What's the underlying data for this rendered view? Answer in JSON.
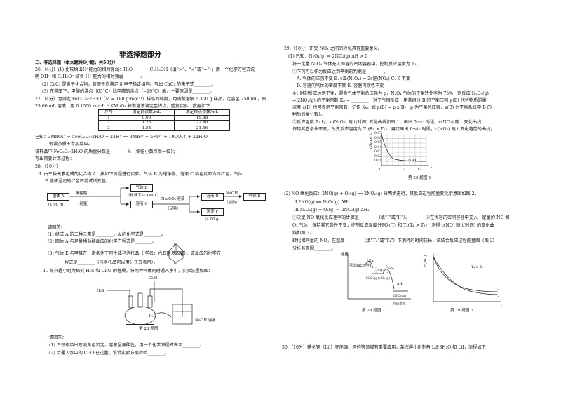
{
  "section_title": "非选择题部分",
  "left": {
    "heading": "二、非选择题（本大题共6小题，共50分）",
    "q26": [
      "26.（4分）(1) 比较给出H⁺能力的相对强弱：H₂O________C₂H₅OH（填“>”、“<”或“=”）；用一个化学方程式说",
      "明 OH⁻ 和 C₂H₅O⁻ 结合 H⁺ 能力的相对强弱________。",
      "(2) CaC₂ 是离子化合物，各原子均满足 8 电子稳定结构。写出 CaC₂ 的电子式________。",
      "(3) 在常压下，甲酸的沸点（65°C）比甲醛的沸点（−19°C）高，主要原因是________。"
    ],
    "q27_intro": [
      "27.（4分）为测定 FeC₂O₄·2H₂O（M = 180 g·mol⁻¹）样品的纯度，用硫酸溶解 6.300 g 样品，定容至 250 mL。取",
      "25.00 mL 溶液，用 0.1000 mol·L⁻¹ KMnO₄ 标准溶液滴定至终点。重复实验，数据如下："
    ],
    "q27_table": {
      "headers": [
        "序号",
        "滴定前读数/mL",
        "滴定终点读数/mL"
      ],
      "rows": [
        [
          "1",
          "0.00",
          "19.98"
        ],
        [
          "2",
          "1.26",
          "22.40"
        ],
        [
          "3",
          "1.54",
          "21.56"
        ]
      ]
    },
    "q27_known": [
      "已知：3MnO₄⁻ + 5FeC₂O₄·2H₂O + 24H⁺ ══ 3Mn²⁺ + 5Fe³⁺ + 10CO₂↑ + 22H₂O",
      "假设杂质不参加反应。",
      "该样品中 FeC₂O₄·2H₂O 的质量分数是________%（保留小数点后一位）；",
      "写出简要计算过程：________"
    ],
    "q28_head": "28.（10分）",
    "q28_I": [
      "I. 由三种元素组成的化合物 A，按如下流程进行实验。气体 B 为纯净物，溶液 C 焰色反应为砖红色，气体",
      "E 能使湿润的红色石蕊试纸变蓝。"
    ],
    "flow": {
      "a": "固体 A",
      "a_mass": "(1.90 g)",
      "reagent1": "稀盐酸",
      "reagent1b": "（足量）",
      "b": "气体 B",
      "b_note": "（标准下 0.448 L）",
      "c": "溶液 C",
      "reagent2": "Na₂CO₃ 溶液",
      "reagent2b": "（足量）",
      "d": "溶液 D",
      "reagent3": "NaOH",
      "reagent3b": "（加热）",
      "e": "气体 E",
      "f": "沉淀 F",
      "f_mass": "（4.00 g）"
    },
    "q28_questions": [
      "请回答：",
      "(1) 组成 A 的三种元素是________，A 的化学式是________。",
      "(2) 固体 A 与足量稀盐酸反应的化学方程式是________。",
      "(3) 气体 E 与甲醛在一定条件下可生成乌洛托品（            学名：六亚甲基四胺），该反应的化学方",
      "程式是________（乌洛托品可以用分子式表示）。",
      "II. 某兴趣小组为探究 H₂S 和 Cl₂O 的性质，将两种气体同时通入水中，实验装置如图："
    ],
    "apparatus": {
      "h2s": "H₂S",
      "cl2o": "Cl₂O",
      "h2o": "H₂O",
      "naoh": "NaOH 溶液",
      "caption": "第 28 题图"
    },
    "q28_II_questions": [
      "请回答：",
      "(1) 三颈瓶中出现淡黄色沉淀，溶液呈强酸性，用一个化学方程式表示________。",
      "(2) 若通入水中的 Cl₂O 已过量，设计实验方案检验________。"
    ]
  },
  "right": {
    "q29_head": "29.（10分）研究 NOₓ 之间的转化具有重要意义。",
    "q29_lines": [
      "(1) 已知：N₂O₄(g) ⇌ 2NO₂(g)   ΔH > 0",
      "将一定量 N₂O₄ 气体充入恒容的密闭容器中，控制反应温度为 T₁。",
      "①下列可以作为反应达到平衡的判据是________。",
      "A. 气体的压强不变     B. v正(N₂O₄) = 2v逆(NO₂)     C. K 不变",
      "D. 容器内气体的密度不变     E. 容器内颜色不变",
      "②t₁时刻反应达到平衡，混合气体平衡总压强为 p，N₂O₄ 气体的平衡转化率为 75%，则反应 N₂O₄(g)",
      "⇌ 2NO₂(g) 的平衡常数 Kₚ = ________（对于气相反应，用某组分 B 的平衡压强 p(B) 代替物质的量",
      "浓度 c(B) 也可表示平衡常数，记作 Kₚ，如 p(B) = p·x(B)，p 为平衡总压强，x(B) 为平衡系统中 B 的",
      "物质的量分数）。",
      "③反应温度 T₁ 时，c(N₂O₄) 随 t(时间) 变化曲线如图 1，画出 0～t₂ 时段，c(NO₂) 随 t 变化曲线。",
      "保持其它条件不变，改变反应温度为 T₂(T₂ > T₁)，再次画出 0～t₂ 时段，c(NO₂) 随 t 变化趋势的曲线。"
    ],
    "fig1": {
      "ylabel": "c/(mol·L⁻¹)",
      "yticks": [
        "0.07",
        "0.06",
        "0.05",
        "0.04",
        "0.03",
        "0.02",
        "0.01"
      ],
      "xticks": [
        "0",
        "t₁",
        "t₂"
      ],
      "xlabel": "t",
      "series": "N₂O₄",
      "caption": "第 29 题图 1"
    },
    "q29_2": [
      "(2) NO 氧化反应：2NO(g) + O₂(g) ══ 2NO₂(g) 分两步进行，其反应过程能量变化示意图如图 2。",
      "I    2NO(g) ══ N₂O₂(g)        ΔH₁",
      "II   N₂O₂(g) + O₂(g) → 2NO₂(g)        ΔH₂",
      "①决定 NO 氧化反应速率的步骤是________（填“I”或“II”）。",
      "②在恒容的密闭容器中充入一定量的 NO 和",
      "O₂ 气体，保持其它条件不变，控制反应温度分别为 T₃ 和 T₄(T₄ > T₃)，测得 c(NO) 随 t(时间) 的变化曲",
      "线如图 3。",
      "转化相同量的 NO，在温度________（填“T₃”或“T₄”）下消耗的时间较长，试结合反应过程能量图（图 2）",
      "分析其原因________。"
    ],
    "fig2": {
      "ylabel": "能量",
      "lvl1": "2NO(g)+O₂(g)",
      "lvl2": "N₂O₂(g)+O₂(g)",
      "lvl3": "2NO₂(g)",
      "ea1": "Ea₁",
      "ea2": "Ea₂",
      "h1": "ΔH₁",
      "h2": "ΔH₂",
      "xlabel": "反应过程",
      "caption": "第 29 题图 2"
    },
    "fig3": {
      "ylabel": "c(NO)",
      "note": "T₄ > T₃",
      "s1": "T₃",
      "s2": "T₄",
      "xlabel": "t",
      "caption": "第 29 题图 3"
    },
    "q30": "30.（10分）碘化锂（LiI）在能源、医药等领域有重要应用，某兴趣小组制备 LiI·3H₂O 和 LiI，流程如下："
  }
}
